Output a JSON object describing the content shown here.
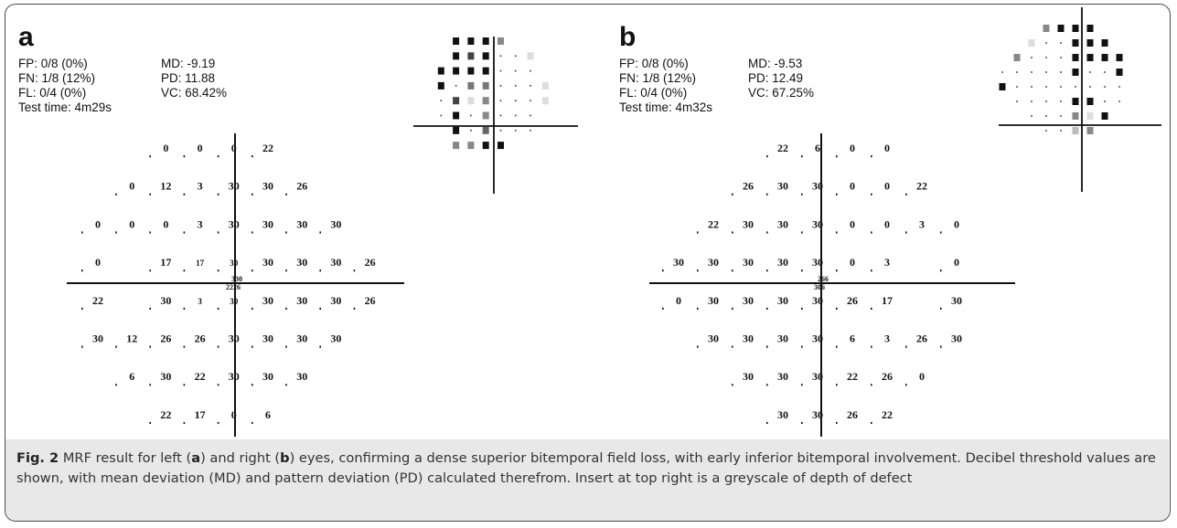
{
  "panels": [
    {
      "letter": "a",
      "stats_left": [
        "FP: 0/8 (0%)",
        "FN: 1/8 (12%)",
        "FL: 0/4 (0%)",
        "Test time: 4m29s"
      ],
      "stats_right": [
        "MD: -9.19",
        "PD: 11.88",
        "VC: 68.42%"
      ],
      "center_labels": [
        "330",
        "2226"
      ],
      "rows": [
        [
          null,
          null,
          "0",
          "0",
          "0",
          "22",
          null,
          null,
          null
        ],
        [
          null,
          "0",
          "12",
          "3",
          "30",
          "30",
          "26",
          null,
          null
        ],
        [
          "0",
          "0",
          "0",
          "3",
          "30",
          "30",
          "30",
          "30",
          null
        ],
        [
          "0",
          null,
          "17",
          "17",
          "30",
          "30",
          "30",
          "30",
          "26"
        ],
        [
          "22",
          null,
          "30",
          "3",
          "30",
          "30",
          "30",
          "30",
          "26"
        ],
        [
          "30",
          "12",
          "26",
          "26",
          "30",
          "30",
          "30",
          "30",
          null
        ],
        [
          null,
          "6",
          "30",
          "22",
          "30",
          "30",
          "30",
          null,
          null
        ],
        [
          null,
          null,
          "22",
          "17",
          "0",
          "6",
          null,
          null,
          null
        ]
      ]
    },
    {
      "letter": "b",
      "stats_left": [
        "FP: 0/8 (0%)",
        "FN: 1/8 (12%)",
        "FL: 0/4 (0%)",
        "Test time: 4m32s"
      ],
      "stats_right": [
        "MD: -9.53",
        "PD: 12.49",
        "VC: 67.25%"
      ],
      "center_labels": [
        "266",
        "306"
      ],
      "rows": [
        [
          null,
          null,
          null,
          "22",
          "6",
          "0",
          "0",
          null,
          null
        ],
        [
          null,
          null,
          "26",
          "30",
          "30",
          "0",
          "0",
          "22",
          null
        ],
        [
          null,
          "22",
          "30",
          "30",
          "30",
          "0",
          "0",
          "3",
          "0"
        ],
        [
          "30",
          "30",
          "30",
          "30",
          "30",
          "0",
          "3",
          null,
          "0"
        ],
        [
          "0",
          "30",
          "30",
          "30",
          "30",
          "26",
          "17",
          null,
          "30"
        ],
        [
          null,
          "30",
          "30",
          "30",
          "30",
          "6",
          "3",
          "26",
          "30"
        ],
        [
          null,
          null,
          "30",
          "30",
          "30",
          "22",
          "26",
          "0",
          null
        ],
        [
          null,
          null,
          null,
          "30",
          "30",
          "26",
          "22",
          null,
          null
        ]
      ]
    }
  ],
  "greyscale_inserts": [
    {
      "rows": [
        [
          null,
          null,
          "#111111",
          "#111111",
          "#111111",
          "#888888",
          null,
          null,
          null
        ],
        [
          null,
          null,
          "#111111",
          "#444444",
          "#111111",
          "dot",
          "dot",
          "#dddddd",
          null
        ],
        [
          null,
          "#111111",
          "#111111",
          "#111111",
          "#111111",
          "dot",
          "dot",
          "dot",
          null
        ],
        [
          null,
          "#111111",
          "dot",
          "#777777",
          "#777777",
          "dot",
          "dot",
          "dot",
          "#dddddd"
        ],
        [
          null,
          "dot",
          "#444444",
          "#dddddd",
          "#888888",
          "dot",
          "dot",
          "dot",
          "#dddddd"
        ],
        [
          null,
          "dot",
          "#111111",
          "dot",
          "#888888",
          "dot",
          "dot",
          "dot",
          null
        ],
        [
          null,
          null,
          "#111111",
          "dot",
          "#666666",
          "dot",
          "dot",
          "dot",
          null
        ],
        [
          null,
          null,
          "#888888",
          "#888888",
          "#111111",
          "#111111",
          null,
          null,
          null
        ]
      ]
    },
    {
      "rows": [
        [
          null,
          null,
          null,
          "#888888",
          "#111111",
          "#111111",
          "#111111",
          null,
          null
        ],
        [
          null,
          null,
          "#dddddd",
          "dot",
          "dot",
          "#111111",
          "#111111",
          "#111111",
          null
        ],
        [
          null,
          "#888888",
          "dot",
          "dot",
          "dot",
          "#111111",
          "#111111",
          "#111111",
          "#111111"
        ],
        [
          "dot",
          "dot",
          "dot",
          "dot",
          "dot",
          "#111111",
          "dot",
          "dot",
          "#111111"
        ],
        [
          "#111111",
          "dot",
          "dot",
          "dot",
          "dot",
          "dot",
          "dot",
          "dot",
          "dot"
        ],
        [
          null,
          "dot",
          "dot",
          "dot",
          "dot",
          "#111111",
          "#111111",
          "dot",
          "dot"
        ],
        [
          null,
          null,
          "dot",
          "dot",
          "dot",
          "#888888",
          "#dddddd",
          "#111111",
          null
        ],
        [
          null,
          null,
          null,
          "dot",
          "dot",
          "#bbbbbb",
          "#888888",
          null,
          null
        ]
      ]
    }
  ],
  "caption": {
    "fig_label": "Fig. 2",
    "text_1": " MRF result for left (",
    "a": "a",
    "text_2": ") and right (",
    "b": "b",
    "text_3": ") eyes, confirming a dense superior bitemporal field loss, with early inferior bitemporal involvement. Decibel threshold values are shown, with mean deviation (MD) and pattern deviation (PD) calculated therefrom. Insert at top right is a greyscale of depth of defect"
  }
}
